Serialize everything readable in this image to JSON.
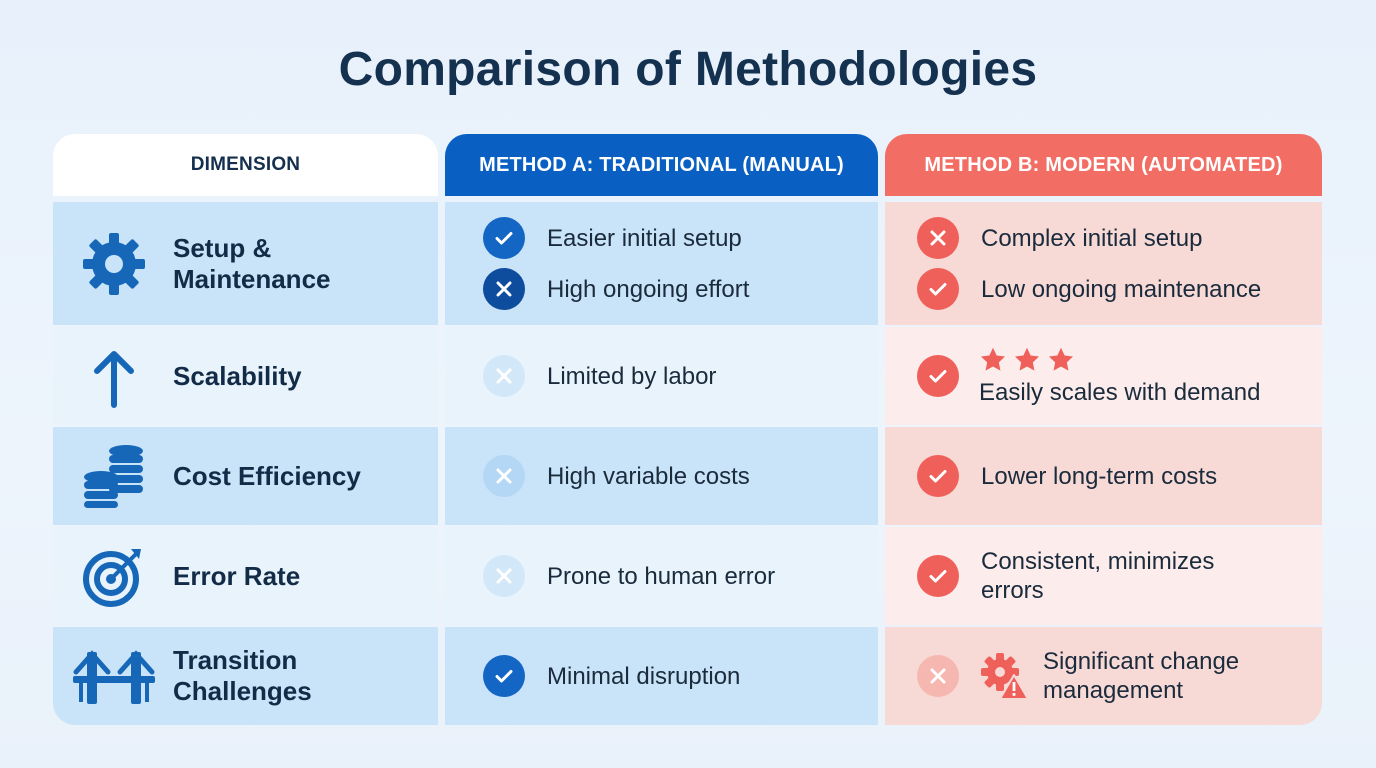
{
  "title": "Comparison of Methodologies",
  "headers": {
    "dimension": "DIMENSION",
    "method_a": "METHOD A: TRADITIONAL (MANUAL)",
    "method_b": "METHOD B: MODERN (AUTOMATED)"
  },
  "colors": {
    "method_a": "#0a60c2",
    "method_b": "#f26d63",
    "title": "#14314f"
  },
  "rows": [
    {
      "dimension": "Setup & Maintenance",
      "icon": "gear-icon",
      "method_a": [
        {
          "status": "check",
          "text": "Easier initial setup"
        },
        {
          "status": "cross",
          "text": "High ongoing effort"
        }
      ],
      "method_b": [
        {
          "status": "cross",
          "text": "Complex initial setup"
        },
        {
          "status": "check",
          "text": "Low ongoing maintenance"
        }
      ]
    },
    {
      "dimension": "Scalability",
      "icon": "arrow-up-icon",
      "method_a": [
        {
          "status": "cross",
          "text": "Limited by labor"
        }
      ],
      "method_b": [
        {
          "status": "check",
          "text": "Easily scales with demand",
          "rating": 3
        }
      ]
    },
    {
      "dimension": "Cost Efficiency",
      "icon": "coin-stack-icon",
      "method_a": [
        {
          "status": "cross",
          "text": "High variable costs"
        }
      ],
      "method_b": [
        {
          "status": "check",
          "text": "Lower long-term costs"
        }
      ]
    },
    {
      "dimension": "Error Rate",
      "icon": "target-icon",
      "method_a": [
        {
          "status": "cross",
          "text": "Prone to human error"
        }
      ],
      "method_b": [
        {
          "status": "check",
          "text": "Consistent, minimizes errors"
        }
      ]
    },
    {
      "dimension": "Transition Challenges",
      "icon": "bridge-icon",
      "method_a": [
        {
          "status": "check",
          "text": "Minimal disruption"
        }
      ],
      "method_b": [
        {
          "status": "cross",
          "text": "Significant change management",
          "icon": "gear-warning-icon"
        }
      ]
    }
  ]
}
